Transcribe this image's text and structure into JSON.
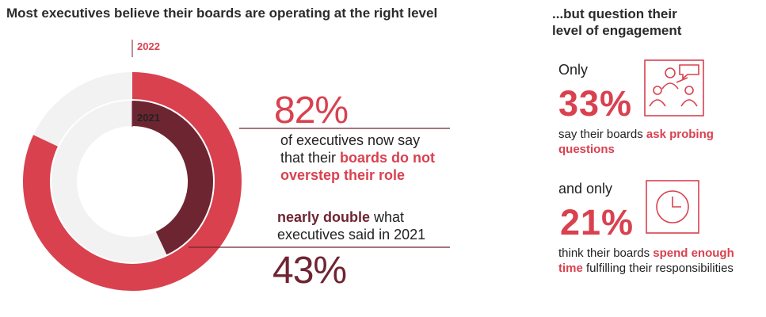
{
  "title": "Most executives believe their boards are operating at the right level",
  "right_panel": {
    "title_line1": "...but question their",
    "title_line2": "level of engagement",
    "stat1": {
      "lead": "Only",
      "value": "33%",
      "text_plain": "say their boards ",
      "text_accent": "ask probing questions",
      "icon": "presenter-meeting-icon"
    },
    "stat2": {
      "lead": "and only",
      "value": "21%",
      "text_plain1": "think their boards ",
      "text_accent": "spend enough time",
      "text_plain2": " fulfilling their responsibilities",
      "icon": "clock-icon"
    }
  },
  "callout_2022": {
    "value": "82%",
    "line1": "of executives now say",
    "line2_plain": "that their ",
    "line2_accent": "boards do not",
    "line3_accent": "overstep their role"
  },
  "callout_2021": {
    "line1_accent": "nearly double",
    "line1_plain": " what",
    "line2": "executives said in 2021",
    "value": "43%"
  },
  "chart_data": {
    "type": "donut",
    "series": [
      {
        "name": "2022",
        "value": 82,
        "color": "#d9414f"
      },
      {
        "name": "2021",
        "value": 43,
        "color": "#6e2532"
      }
    ],
    "track_color": "#f2f2f2",
    "max": 100
  },
  "colors": {
    "accent": "#d9414f",
    "dark": "#6e2532",
    "track": "#f2f2f2"
  }
}
